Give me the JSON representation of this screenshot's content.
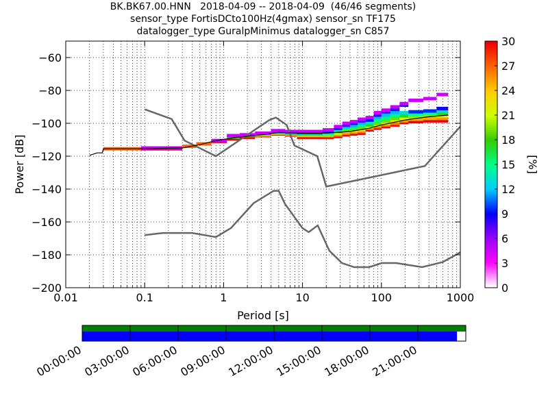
{
  "title": {
    "line1": "BK.BK67.00.HNN   2018-04-09 -- 2018-04-09  (46/46 segments)",
    "line2": "sensor_type FortisDCto100Hz(4gmax) sensor_sn TF175",
    "line3": "datalogger_type GuralpMinimus datalogger_sn C857"
  },
  "chart_data": {
    "type": "heatmap",
    "title": "BK.BK67.00.HNN   2018-04-09 -- 2018-04-09  (46/46 segments)",
    "xlabel": "Period [s]",
    "ylabel": "Power [dB]",
    "x_scale": "log",
    "xlim": [
      0.01,
      1000
    ],
    "ylim": [
      -200,
      -50
    ],
    "x_ticks": [
      0.01,
      0.1,
      1,
      10,
      100,
      1000
    ],
    "x_tick_labels": [
      "0.01",
      "0.1",
      "1",
      "10",
      "100",
      "1000"
    ],
    "y_ticks": [
      -200,
      -180,
      -160,
      -140,
      -120,
      -100,
      -80,
      -60
    ],
    "y_tick_labels": [
      "−200",
      "−180",
      "−160",
      "−140",
      "−120",
      "−100",
      "−80",
      "−60"
    ],
    "grid": true,
    "colorbar": {
      "label": "[%]",
      "range": [
        0,
        30
      ],
      "ticks": [
        0,
        3,
        6,
        9,
        12,
        15,
        18,
        21,
        24,
        27,
        30
      ],
      "colormap": [
        "#ffffff",
        "#ff00ff",
        "#9900ff",
        "#0000ff",
        "#00ccff",
        "#00ff88",
        "#33cc00",
        "#ccff00",
        "#ffcc00",
        "#ff6600",
        "#ee0000"
      ]
    },
    "model_curves": {
      "color": "#666666",
      "high_noise": [
        [
          0.1,
          -91.5
        ],
        [
          0.22,
          -97.4
        ],
        [
          0.32,
          -110.5
        ],
        [
          0.8,
          -120
        ],
        [
          3.8,
          -98
        ],
        [
          4.6,
          -96.5
        ],
        [
          6.3,
          -101
        ],
        [
          7.9,
          -113.5
        ],
        [
          15.4,
          -120
        ],
        [
          20,
          -138.5
        ],
        [
          354.8,
          -126
        ],
        [
          10000,
          -48.5
        ]
      ],
      "low_noise": [
        [
          0.1,
          -168
        ],
        [
          0.17,
          -166.7
        ],
        [
          0.4,
          -166.7
        ],
        [
          0.8,
          -169.2
        ],
        [
          1.24,
          -163.7
        ],
        [
          2.4,
          -148.6
        ],
        [
          4.3,
          -141.1
        ],
        [
          5,
          -141.1
        ],
        [
          6,
          -149
        ],
        [
          10,
          -163.8
        ],
        [
          12,
          -166.2
        ],
        [
          15.6,
          -162.1
        ],
        [
          21.9,
          -177.5
        ],
        [
          31.6,
          -185
        ],
        [
          45,
          -187.5
        ],
        [
          70,
          -187.5
        ],
        [
          101,
          -185
        ],
        [
          154,
          -185
        ],
        [
          328,
          -187.5
        ],
        [
          600,
          -184.4
        ],
        [
          1000,
          -178.5
        ]
      ]
    },
    "median_curve": [
      [
        0.02,
        -119.5
      ],
      [
        0.025,
        -118
      ],
      [
        0.029,
        -118
      ],
      [
        0.03,
        -115.5
      ],
      [
        0.1,
        -115.5
      ],
      [
        0.3,
        -115
      ],
      [
        0.5,
        -113
      ],
      [
        0.8,
        -110.5
      ],
      [
        1.5,
        -108.5
      ],
      [
        3,
        -107
      ],
      [
        5,
        -105.5
      ],
      [
        10,
        -106
      ],
      [
        20,
        -106
      ],
      [
        40,
        -105
      ],
      [
        70,
        -103
      ],
      [
        100,
        -101
      ],
      [
        200,
        -98
      ],
      [
        400,
        -96
      ],
      [
        700,
        -95
      ]
    ],
    "psd_bands": [
      {
        "from": 0.03,
        "to": 0.09,
        "values": [
          -115.5
        ]
      },
      {
        "from": 0.09,
        "to": 0.3,
        "values": [
          -115.5,
          -115
        ]
      },
      {
        "from": 0.3,
        "to": 0.45,
        "values": [
          -114
        ]
      },
      {
        "from": 0.45,
        "to": 0.7,
        "values": [
          -112.5
        ]
      },
      {
        "from": 0.7,
        "to": 1.1,
        "values": [
          -111,
          -110.5
        ]
      },
      {
        "from": 1.1,
        "to": 1.6,
        "values": [
          -109.5,
          -108.5,
          -107.5
        ]
      },
      {
        "from": 1.6,
        "to": 2.5,
        "values": [
          -108.5,
          -107.5,
          -107
        ]
      },
      {
        "from": 2.5,
        "to": 4.0,
        "values": [
          -107.5,
          -107,
          -106.5,
          -106
        ]
      },
      {
        "from": 4.0,
        "to": 6.0,
        "values": [
          -106.5,
          -106,
          -105.5,
          -105,
          -104.5
        ]
      },
      {
        "from": 6.0,
        "to": 8.5,
        "values": [
          -107,
          -106.5,
          -106,
          -105.5,
          -105
        ]
      },
      {
        "from": 8.5,
        "to": 12,
        "values": [
          -108.5,
          -107.5,
          -107,
          -106.5,
          -106,
          -105.5,
          -105
        ]
      },
      {
        "from": 12,
        "to": 18,
        "values": [
          -108.5,
          -107.5,
          -107,
          -106.5,
          -106,
          -105.5,
          -105
        ]
      },
      {
        "from": 18,
        "to": 25,
        "values": [
          -108.5,
          -107.5,
          -107,
          -106,
          -105,
          -104
        ]
      },
      {
        "from": 25,
        "to": 32,
        "values": [
          -108,
          -107,
          -106,
          -105,
          -104,
          -103,
          -102
        ]
      },
      {
        "from": 32,
        "to": 40,
        "values": [
          -107,
          -106,
          -105,
          -104,
          -103,
          -102,
          -101,
          -100
        ]
      },
      {
        "from": 40,
        "to": 50,
        "values": [
          -106.5,
          -105.5,
          -104.5,
          -103.5,
          -102.5,
          -101.5,
          -100,
          -99
        ]
      },
      {
        "from": 50,
        "to": 63,
        "values": [
          -106,
          -105,
          -104,
          -103,
          -101.5,
          -100,
          -98.5,
          -97.5
        ]
      },
      {
        "from": 63,
        "to": 80,
        "values": [
          -104,
          -103,
          -102,
          -101,
          -99.5,
          -98,
          -96.5
        ]
      },
      {
        "from": 80,
        "to": 100,
        "values": [
          -103,
          -102,
          -101,
          -100,
          -98.5,
          -96.5,
          -95,
          -93.5
        ]
      },
      {
        "from": 100,
        "to": 130,
        "values": [
          -102,
          -101,
          -100,
          -98.5,
          -97,
          -95,
          -93,
          -92
        ]
      },
      {
        "from": 130,
        "to": 170,
        "values": [
          -101,
          -100,
          -98.5,
          -97,
          -95.5,
          -93.5,
          -91.5,
          -90
        ]
      },
      {
        "from": 170,
        "to": 220,
        "values": [
          -99.5,
          -98.5,
          -97,
          -95.5,
          -93.5,
          -89,
          -88
        ]
      },
      {
        "from": 220,
        "to": 340,
        "values": [
          -99,
          -97.5,
          -96,
          -94.5,
          -93,
          -86
        ]
      },
      {
        "from": 340,
        "to": 500,
        "values": [
          -98.5,
          -97,
          -95.5,
          -94,
          -92.5,
          -85
        ]
      },
      {
        "from": 500,
        "to": 700,
        "values": [
          -98.5,
          -97,
          -95.5,
          -94,
          -92.5,
          -91,
          -82.5
        ]
      }
    ]
  },
  "timeline": {
    "tick_labels": [
      "00:00:00",
      "03:00:00",
      "06:00:00",
      "09:00:00",
      "12:00:00",
      "15:00:00",
      "18:00:00",
      "21:00:00"
    ],
    "available_color": "#008000",
    "coverage_color": "#0000ff",
    "coverage_fraction": 0.977
  }
}
